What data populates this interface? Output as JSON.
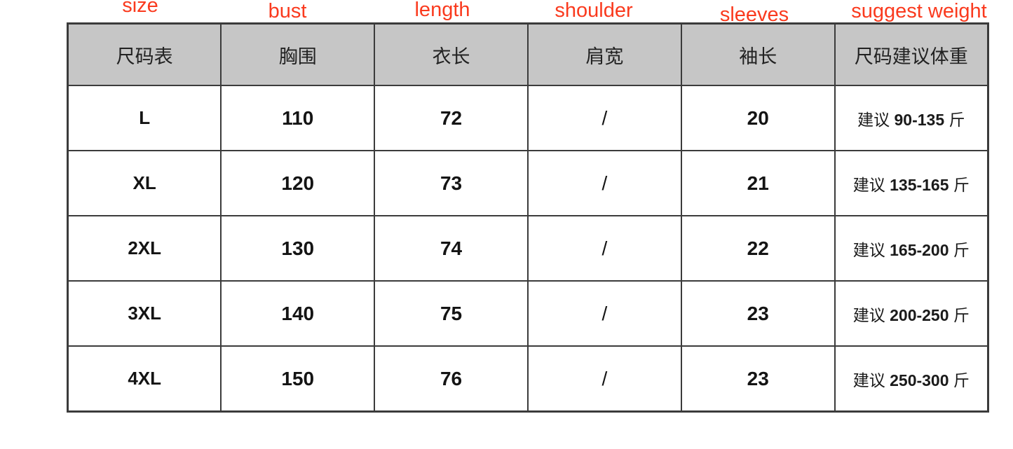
{
  "page": {
    "background": "#ffffff"
  },
  "annotations": {
    "color": "#fa3a1e",
    "labels": [
      "size",
      "bust",
      "length",
      "shoulder",
      "sleeves",
      "suggest weight"
    ]
  },
  "chart_data": {
    "type": "table",
    "title": "尺码表",
    "header_background": "#c6c6c6",
    "border_color": "#3b3b3b",
    "columns": [
      "尺码表",
      "胸围",
      "衣长",
      "肩宽",
      "袖长",
      "尺码建议体重"
    ],
    "column_annotations_en": [
      "size",
      "bust",
      "length",
      "shoulder",
      "sleeves",
      "suggest weight"
    ],
    "rows": [
      [
        "L",
        "110",
        "72",
        "/",
        "20",
        "建议 90-135 斤"
      ],
      [
        "XL",
        "120",
        "73",
        "/",
        "21",
        "建议 135-165 斤"
      ],
      [
        "2XL",
        "130",
        "74",
        "/",
        "22",
        "建议 165-200 斤"
      ],
      [
        "3XL",
        "140",
        "75",
        "/",
        "23",
        "建议 200-250 斤"
      ],
      [
        "4XL",
        "150",
        "76",
        "/",
        "23",
        "建议 250-300 斤"
      ]
    ]
  }
}
